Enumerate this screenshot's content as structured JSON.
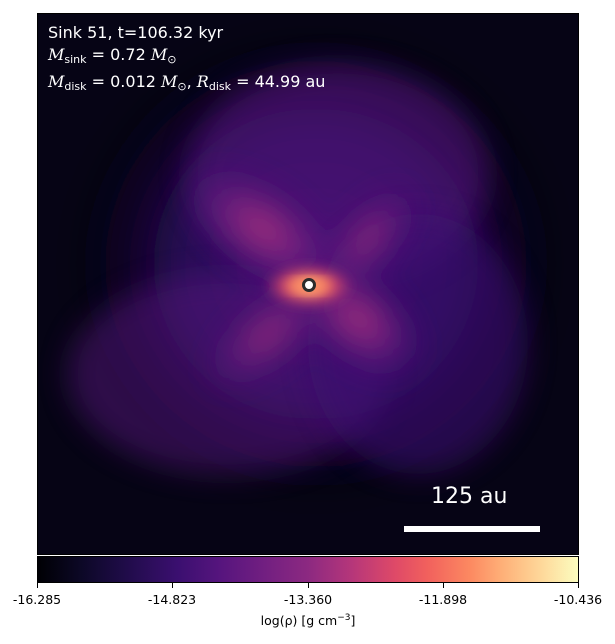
{
  "annotation": {
    "sink_line": "Sink 51, t=106.32 kyr",
    "mass_symbol": "M",
    "sink_sub": "sink",
    "sink_mass": "= 0.72",
    "solar_symbol": "M",
    "solar_sub": "⊙",
    "disk_sub": "disk",
    "disk_mass": "= 0.012",
    "radius_symbol": "R",
    "disk_radius": "= 44.99",
    "radius_unit": "au"
  },
  "scale_bar": {
    "label": "125 au"
  },
  "colorbar": {
    "ticks": [
      "-16.285",
      "-14.823",
      "-13.360",
      "-11.898",
      "-10.436"
    ],
    "label_prefix": "log(ρ) [g cm",
    "label_exponent": "−3",
    "label_suffix": "]"
  },
  "colors": {
    "background": "#000004",
    "disk_core": "#f1605d",
    "envelope": "#3b0f70",
    "sink_fill": "#ffffff",
    "sink_ring": "#2b2b2b"
  },
  "icons": {
    "sink": "sink-particle-icon"
  }
}
